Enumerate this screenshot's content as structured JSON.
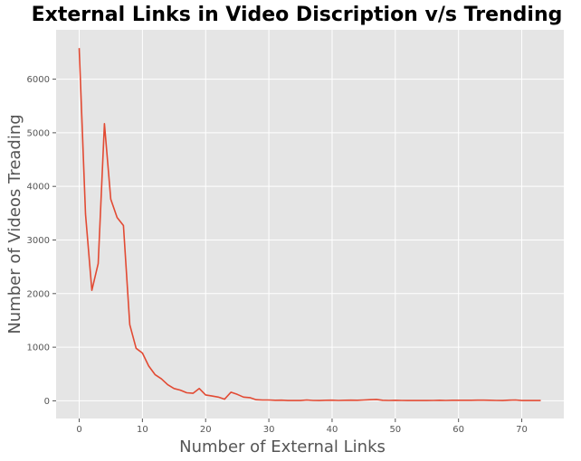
{
  "chart_data": {
    "type": "line",
    "title": "External Links in Video Discription v/s Trending",
    "xlabel": "Number of External Links",
    "ylabel": "Number of Videos Treading",
    "xlim": [
      -3.65,
      76.65
    ],
    "ylim": [
      -330,
      6920
    ],
    "xticks": [
      "0",
      "10",
      "20",
      "30",
      "40",
      "50",
      "60",
      "70"
    ],
    "yticks": [
      "0",
      "1000",
      "2000",
      "3000",
      "4000",
      "5000",
      "6000"
    ],
    "grid": true,
    "background": "#E5E5E5",
    "line_color": "#E24A33",
    "series": [
      {
        "x": [
          0,
          1,
          2,
          3,
          4,
          5,
          6,
          7,
          8,
          9,
          10,
          11,
          12,
          13,
          14,
          15,
          16,
          17,
          18,
          19,
          20,
          21,
          22,
          23,
          24,
          25,
          26,
          27,
          28,
          29,
          30,
          31,
          32,
          33,
          34,
          35,
          36,
          37,
          38,
          39,
          40,
          41,
          42,
          43,
          44,
          45,
          46,
          47,
          48,
          49,
          50,
          51,
          52,
          53,
          54,
          55,
          56,
          57,
          58,
          59,
          60,
          61,
          62,
          63,
          64,
          65,
          66,
          67,
          68,
          69,
          70,
          71,
          72,
          73
        ],
        "values": [
          6580,
          3480,
          2060,
          2560,
          5170,
          3760,
          3420,
          3270,
          1420,
          980,
          890,
          650,
          490,
          410,
          300,
          230,
          200,
          150,
          140,
          230,
          110,
          90,
          70,
          30,
          160,
          120,
          70,
          60,
          20,
          15,
          15,
          10,
          12,
          5,
          8,
          5,
          15,
          8,
          6,
          10,
          12,
          8,
          10,
          12,
          10,
          15,
          20,
          25,
          10,
          8,
          10,
          8,
          6,
          5,
          6,
          5,
          8,
          10,
          8,
          10,
          10,
          10,
          10,
          12,
          12,
          10,
          8,
          5,
          12,
          15,
          5,
          8,
          5,
          5
        ]
      }
    ]
  }
}
